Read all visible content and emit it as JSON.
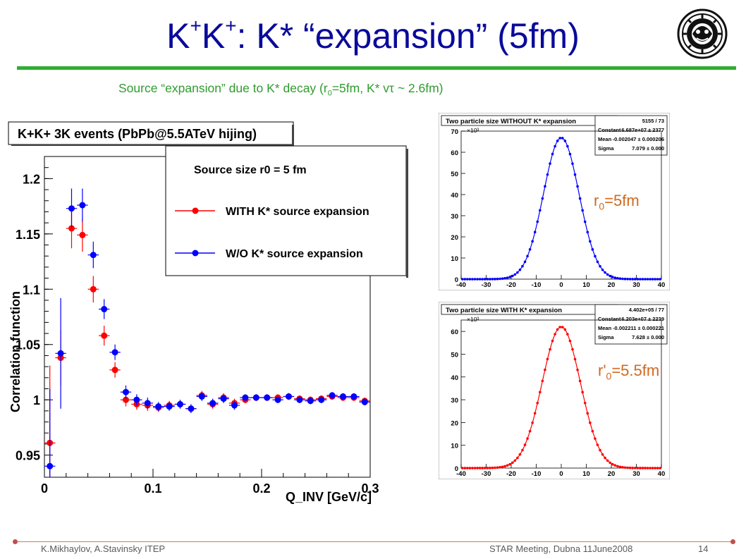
{
  "slide": {
    "title_parts": {
      "k1": "K",
      "sup1": "+",
      "k2": "K",
      "sup2": "+",
      "rest": ": K*  “expansion” (5fm)"
    },
    "subtitle_parts": {
      "a": "Source “expansion” due to K* decay (r",
      "sub": "0",
      "b": "=5fm, K* vτ ~ 2.6fm)"
    },
    "logo_icon": "institute-seal-icon",
    "footer": {
      "left": "K.Mikhaylov, A.Stavinsky ITEP",
      "center": "STAR Meeting, Dubna 11June2008",
      "page": "14"
    },
    "colors": {
      "title": "#0a0a9a",
      "subtitle": "#2f9c2f",
      "rule": "#2fae2f",
      "with": "#ff0000",
      "without": "#0000ff",
      "annotation": "#d2691e"
    }
  },
  "annotations": {
    "r0": {
      "pre": "r",
      "sub": "0",
      "post": "=5fm"
    },
    "r0p": {
      "pre": "r'",
      "sub": "0",
      "post": "=5.5fm"
    }
  },
  "chart_data": [
    {
      "type": "scatter",
      "title": "K+K+ 3K events (PbPb@5.5ATeV hijing)",
      "xlabel": "Q_INV [GeV/c]",
      "ylabel": "Correlation function",
      "xlim": [
        0,
        0.3
      ],
      "ylim": [
        0.93,
        1.22
      ],
      "xticks": [
        "0",
        "0.1",
        "0.2",
        "0.3"
      ],
      "yticks": [
        "0.95",
        "1",
        "1.05",
        "1.1",
        "1.15",
        "1.2"
      ],
      "legend": {
        "header": "Source size r0 = 5 fm",
        "placement": "top-right"
      },
      "series": [
        {
          "name": "WITH K* source expansion",
          "color": "#ff0000",
          "x": [
            0.005,
            0.015,
            0.025,
            0.035,
            0.045,
            0.055,
            0.065,
            0.075,
            0.085,
            0.095,
            0.105,
            0.115,
            0.125,
            0.135,
            0.145,
            0.155,
            0.165,
            0.175,
            0.185,
            0.195,
            0.205,
            0.215,
            0.225,
            0.235,
            0.245,
            0.255,
            0.265,
            0.275,
            0.285,
            0.295
          ],
          "y": [
            0.961,
            1.038,
            1.155,
            1.149,
            1.1,
            1.058,
            1.027,
            1.0,
            0.996,
            0.995,
            0.993,
            0.995,
            0.996,
            0.992,
            1.004,
            0.996,
            1.002,
            0.997,
            1.0,
            1.002,
            1.002,
            1.002,
            1.003,
            1.001,
            1.0,
            1.001,
            1.003,
            1.002,
            1.002,
            0.999
          ],
          "err": [
            0.07,
            0.025,
            0.018,
            0.015,
            0.012,
            0.009,
            0.007,
            0.006,
            0.005,
            0.005,
            0.004,
            0.004,
            0.004,
            0.004,
            0.004,
            0.004,
            0.004,
            0.004,
            0.003,
            0.003,
            0.003,
            0.003,
            0.003,
            0.003,
            0.003,
            0.003,
            0.003,
            0.003,
            0.003,
            0.003
          ]
        },
        {
          "name": "W/O K* source expansion",
          "color": "#0000ff",
          "x": [
            0.005,
            0.015,
            0.025,
            0.035,
            0.045,
            0.055,
            0.065,
            0.075,
            0.085,
            0.095,
            0.105,
            0.115,
            0.125,
            0.135,
            0.145,
            0.155,
            0.165,
            0.175,
            0.185,
            0.195,
            0.205,
            0.215,
            0.225,
            0.235,
            0.245,
            0.255,
            0.265,
            0.275,
            0.285,
            0.295
          ],
          "y": [
            0.94,
            1.042,
            1.173,
            1.176,
            1.131,
            1.082,
            1.043,
            1.007,
            1.0,
            0.997,
            0.994,
            0.994,
            0.996,
            0.992,
            1.003,
            0.997,
            1.001,
            0.995,
            1.002,
            1.002,
            1.002,
            1.0,
            1.003,
            1.0,
            0.999,
            1.0,
            1.004,
            1.003,
            1.003,
            0.998
          ],
          "err": [
            0.07,
            0.05,
            0.018,
            0.015,
            0.012,
            0.009,
            0.007,
            0.006,
            0.005,
            0.005,
            0.004,
            0.004,
            0.004,
            0.004,
            0.004,
            0.004,
            0.004,
            0.004,
            0.003,
            0.003,
            0.003,
            0.003,
            0.003,
            0.003,
            0.003,
            0.003,
            0.003,
            0.003,
            0.003,
            0.003
          ]
        }
      ]
    },
    {
      "type": "line",
      "title": "Two particle size WITHOUT K* expansion",
      "stats": [
        [
          "",
          "5155 / 73"
        ],
        [
          "Constant",
          "6.687e+07 ± 2377"
        ],
        [
          "Mean",
          "-0.002047 ± 0.000206"
        ],
        [
          "Sigma",
          "7.079 ± 0.000"
        ]
      ],
      "multiplier": "×10³",
      "xlim": [
        -40,
        40
      ],
      "ylim": [
        0,
        70
      ],
      "xticks": [
        "-40",
        "-30",
        "-20",
        "-10",
        "0",
        "10",
        "20",
        "30",
        "40"
      ],
      "yticks": [
        "0",
        "10",
        "20",
        "30",
        "40",
        "50",
        "60",
        "70"
      ],
      "series": [
        {
          "color": "#0000ff",
          "peak": 66.87,
          "mean": -0.002047,
          "sigma": 7.079
        }
      ]
    },
    {
      "type": "line",
      "title": "Two particle size WITH K* expansion",
      "stats": [
        [
          "",
          "4.402e+05 / 77"
        ],
        [
          "Constant",
          "6.203e+07 ± 2239"
        ],
        [
          "Mean",
          "-0.002211 ± 0.000221"
        ],
        [
          "Sigma",
          "7.628 ± 0.000"
        ]
      ],
      "multiplier": "×10³",
      "xlim": [
        -40,
        40
      ],
      "ylim": [
        0,
        65
      ],
      "xticks": [
        "-40",
        "-30",
        "-20",
        "-10",
        "0",
        "10",
        "20",
        "30",
        "40"
      ],
      "yticks": [
        "0",
        "10",
        "20",
        "30",
        "40",
        "50",
        "60"
      ],
      "series": [
        {
          "color": "#ff0000",
          "peak": 62.03,
          "mean": -0.002211,
          "sigma": 7.628
        }
      ]
    }
  ]
}
